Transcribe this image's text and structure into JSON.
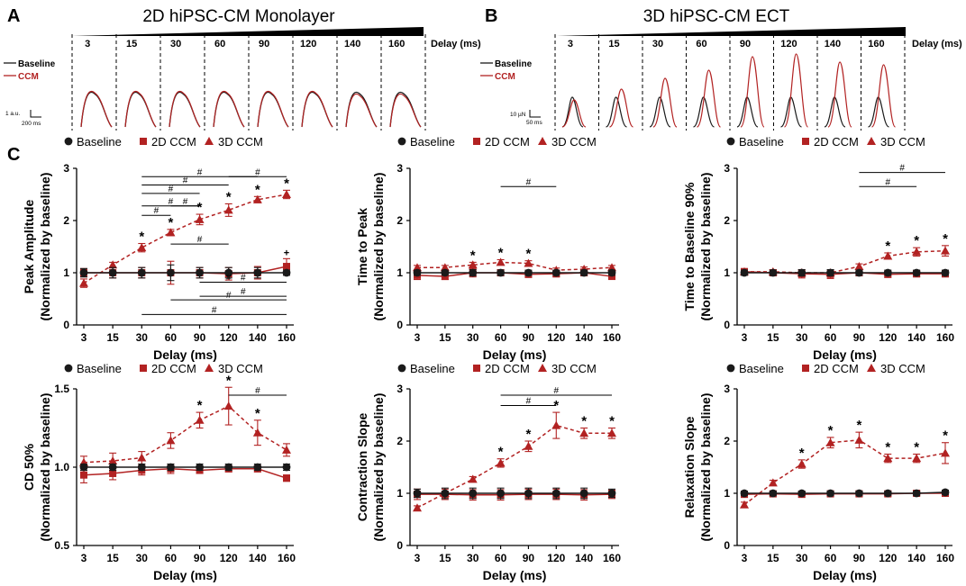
{
  "panels": {
    "a_letter": "A",
    "b_letter": "B",
    "c_letter": "C",
    "a_title": "2D hiPSC-CM Monolayer",
    "b_title": "3D hiPSC-CM ECT",
    "delay_label": "Delay (ms)",
    "delays": [
      "3",
      "15",
      "30",
      "60",
      "90",
      "120",
      "140",
      "160"
    ],
    "legend_baseline": "Baseline",
    "legend_ccm": "CCM",
    "a_scale_y": "1 a.u.",
    "a_scale_x": "200 ms",
    "b_scale_y": "10 µN",
    "b_scale_x": "50 ms"
  },
  "legend": {
    "baseline": "Baseline",
    "ccm2d": "2D CCM",
    "ccm3d": "3D CCM"
  },
  "colors": {
    "baseline": "#1a1a1a",
    "ccm": "#b22222",
    "axis": "#000000"
  },
  "chart_data": [
    {
      "type": "line",
      "ylabel": "Peak Amplitude\n(Normalized by baseline)",
      "xlabel": "Delay (ms)",
      "categories": [
        "3",
        "15",
        "30",
        "60",
        "90",
        "120",
        "140",
        "160"
      ],
      "ylim": [
        0,
        3
      ],
      "yticks": [
        "0",
        "1",
        "2",
        "3"
      ],
      "series": [
        {
          "name": "Baseline",
          "values": [
            1.0,
            1.0,
            1.0,
            1.0,
            1.0,
            1.0,
            1.0,
            1.0
          ],
          "err": [
            0.08,
            0.1,
            0.1,
            0.15,
            0.1,
            0.1,
            0.1,
            0.05
          ]
        },
        {
          "name": "2D CCM",
          "values": [
            1.0,
            1.0,
            1.0,
            1.0,
            1.0,
            0.98,
            1.0,
            1.12
          ],
          "err": [
            0.08,
            0.1,
            0.1,
            0.22,
            0.1,
            0.12,
            0.12,
            0.15
          ]
        },
        {
          "name": "3D CCM",
          "values": [
            0.8,
            1.15,
            1.48,
            1.77,
            2.02,
            2.2,
            2.4,
            2.5
          ],
          "err": [
            0.08,
            0.05,
            0.08,
            0.06,
            0.1,
            0.12,
            0.06,
            0.08
          ]
        }
      ],
      "stars": [
        {
          "i": 2,
          "text": "*"
        },
        {
          "i": 3,
          "text": "*"
        },
        {
          "i": 4,
          "text": "*"
        },
        {
          "i": 5,
          "text": "*"
        },
        {
          "i": 6,
          "text": "*"
        },
        {
          "i": 7,
          "text": "*"
        }
      ],
      "marks": [
        {
          "i": 7,
          "text": "+"
        }
      ],
      "brackets": [
        {
          "from": 2,
          "to": 3,
          "y": 2.1,
          "label": "#"
        },
        {
          "from": 2,
          "to": 4,
          "y": 2.28,
          "label": "#"
        },
        {
          "from": 3,
          "to": 4,
          "y": 2.28,
          "label": "#"
        },
        {
          "from": 2,
          "to": 4,
          "y": 2.52,
          "label": "#"
        },
        {
          "from": 2,
          "to": 5,
          "y": 2.68,
          "label": "#"
        },
        {
          "from": 2,
          "to": 6,
          "y": 2.84,
          "label": "#"
        },
        {
          "from": 5,
          "to": 7,
          "y": 2.84,
          "label": "#"
        },
        {
          "from": 3,
          "to": 5,
          "y": 1.55,
          "label": "#"
        },
        {
          "from": 4,
          "to": 7,
          "y": 0.82,
          "label": "#"
        },
        {
          "from": 4,
          "to": 6,
          "y": 0.82,
          "label": "#"
        },
        {
          "from": 4,
          "to": 7,
          "y": 0.55,
          "label": "#"
        },
        {
          "from": 3,
          "to": 7,
          "y": 0.48,
          "label": "#"
        },
        {
          "from": 2,
          "to": 7,
          "y": 0.2,
          "label": "#"
        }
      ]
    },
    {
      "type": "line",
      "ylabel": "Time to Peak\n(Normalized by baseline)",
      "xlabel": "Delay (ms)",
      "categories": [
        "3",
        "15",
        "30",
        "60",
        "90",
        "120",
        "140",
        "160"
      ],
      "ylim": [
        0,
        3
      ],
      "yticks": [
        "0",
        "1",
        "2",
        "3"
      ],
      "series": [
        {
          "name": "Baseline",
          "values": [
            1.0,
            1.0,
            1.0,
            1.0,
            1.0,
            1.0,
            1.0,
            1.0
          ],
          "err": [
            0.05,
            0.05,
            0.06,
            0.05,
            0.05,
            0.05,
            0.05,
            0.05
          ]
        },
        {
          "name": "2D CCM",
          "values": [
            0.95,
            0.93,
            1.0,
            1.0,
            0.97,
            0.98,
            1.0,
            0.93
          ],
          "err": [
            0.08,
            0.06,
            0.08,
            0.06,
            0.06,
            0.06,
            0.06,
            0.05
          ]
        },
        {
          "name": "3D CCM",
          "values": [
            1.1,
            1.1,
            1.15,
            1.2,
            1.18,
            1.05,
            1.07,
            1.1
          ],
          "err": [
            0.04,
            0.04,
            0.05,
            0.05,
            0.05,
            0.04,
            0.04,
            0.04
          ]
        }
      ],
      "stars": [
        {
          "i": 2,
          "text": "*"
        },
        {
          "i": 3,
          "text": "*"
        },
        {
          "i": 4,
          "text": "*"
        }
      ],
      "marks": [],
      "brackets": [
        {
          "from": 3,
          "to": 5,
          "y": 2.65,
          "label": "#"
        }
      ]
    },
    {
      "type": "line",
      "ylabel": "Time to Baseline 90%\n(Normalized by baseline)",
      "xlabel": "Delay (ms)",
      "categories": [
        "3",
        "15",
        "30",
        "60",
        "90",
        "120",
        "140",
        "160"
      ],
      "ylim": [
        0,
        3
      ],
      "yticks": [
        "0",
        "1",
        "2",
        "3"
      ],
      "series": [
        {
          "name": "Baseline",
          "values": [
            1.0,
            1.0,
            1.0,
            1.0,
            1.0,
            1.0,
            1.0,
            1.0
          ],
          "err": [
            0.05,
            0.05,
            0.06,
            0.06,
            0.05,
            0.05,
            0.05,
            0.05
          ]
        },
        {
          "name": "2D CCM",
          "values": [
            1.02,
            1.0,
            0.98,
            0.97,
            1.0,
            0.97,
            0.98,
            0.98
          ],
          "err": [
            0.06,
            0.06,
            0.08,
            0.08,
            0.06,
            0.06,
            0.06,
            0.06
          ]
        },
        {
          "name": "3D CCM",
          "values": [
            1.02,
            1.02,
            1.0,
            1.0,
            1.12,
            1.32,
            1.4,
            1.42
          ],
          "err": [
            0.04,
            0.04,
            0.05,
            0.05,
            0.05,
            0.06,
            0.08,
            0.1
          ]
        }
      ],
      "stars": [
        {
          "i": 5,
          "text": "*"
        },
        {
          "i": 6,
          "text": "*"
        },
        {
          "i": 7,
          "text": "*"
        }
      ],
      "marks": [],
      "brackets": [
        {
          "from": 4,
          "to": 6,
          "y": 2.65,
          "label": "#"
        },
        {
          "from": 4,
          "to": 7,
          "y": 2.92,
          "label": "#"
        }
      ]
    },
    {
      "type": "line",
      "ylabel": "CD 50%\n(Normalized by baseline)",
      "xlabel": "Delay (ms)",
      "categories": [
        "3",
        "15",
        "30",
        "60",
        "90",
        "120",
        "140",
        "160"
      ],
      "ylim": [
        0.5,
        1.5
      ],
      "yticks": [
        "0.5",
        "1.0",
        "1.5"
      ],
      "series": [
        {
          "name": "Baseline",
          "values": [
            1.0,
            1.0,
            1.0,
            1.0,
            1.0,
            1.0,
            1.0,
            1.0
          ],
          "err": [
            0.02,
            0.02,
            0.02,
            0.02,
            0.02,
            0.02,
            0.02,
            0.02
          ]
        },
        {
          "name": "2D CCM",
          "values": [
            0.95,
            0.96,
            0.98,
            0.99,
            0.98,
            0.99,
            0.99,
            0.93
          ],
          "err": [
            0.05,
            0.04,
            0.03,
            0.03,
            0.02,
            0.02,
            0.02,
            0.02
          ]
        },
        {
          "name": "3D CCM",
          "values": [
            1.03,
            1.04,
            1.06,
            1.17,
            1.3,
            1.39,
            1.22,
            1.11
          ],
          "err": [
            0.04,
            0.05,
            0.04,
            0.05,
            0.05,
            0.12,
            0.08,
            0.04
          ]
        }
      ],
      "stars": [
        {
          "i": 4,
          "text": "*"
        },
        {
          "i": 5,
          "text": "*"
        },
        {
          "i": 6,
          "text": "*"
        }
      ],
      "marks": [],
      "brackets": [
        {
          "from": 5,
          "to": 7,
          "y": 1.46,
          "label": "#"
        }
      ]
    },
    {
      "type": "line",
      "ylabel": "Contraction Slope\n(Normalized by baseline)",
      "xlabel": "Delay (ms)",
      "categories": [
        "3",
        "15",
        "30",
        "60",
        "90",
        "120",
        "140",
        "160"
      ],
      "ylim": [
        0,
        3
      ],
      "yticks": [
        "0",
        "1",
        "2",
        "3"
      ],
      "series": [
        {
          "name": "Baseline",
          "values": [
            1.0,
            1.0,
            1.0,
            1.0,
            1.0,
            1.0,
            1.0,
            1.0
          ],
          "err": [
            0.08,
            0.1,
            0.1,
            0.1,
            0.1,
            0.1,
            0.1,
            0.08
          ]
        },
        {
          "name": "2D CCM",
          "values": [
            0.98,
            0.98,
            0.97,
            0.97,
            0.98,
            0.98,
            0.97,
            0.98
          ],
          "err": [
            0.1,
            0.1,
            0.1,
            0.1,
            0.1,
            0.1,
            0.1,
            0.08
          ]
        },
        {
          "name": "3D CCM",
          "values": [
            0.72,
            1.0,
            1.27,
            1.58,
            1.9,
            2.3,
            2.15,
            2.15
          ],
          "err": [
            0.04,
            0.04,
            0.05,
            0.08,
            0.1,
            0.25,
            0.1,
            0.1
          ]
        }
      ],
      "stars": [
        {
          "i": 3,
          "text": "*"
        },
        {
          "i": 4,
          "text": "*"
        },
        {
          "i": 5,
          "text": "*"
        },
        {
          "i": 6,
          "text": "*"
        },
        {
          "i": 7,
          "text": "*"
        }
      ],
      "marks": [],
      "brackets": [
        {
          "from": 3,
          "to": 5,
          "y": 2.68,
          "label": "#"
        },
        {
          "from": 3,
          "to": 7,
          "y": 2.88,
          "label": "#"
        }
      ]
    },
    {
      "type": "line",
      "ylabel": "Relaxation Slope\n(Normalized by baseline)",
      "xlabel": "Delay (ms)",
      "categories": [
        "3",
        "15",
        "30",
        "60",
        "90",
        "120",
        "140",
        "160"
      ],
      "ylim": [
        0,
        3
      ],
      "yticks": [
        "0",
        "1",
        "2",
        "3"
      ],
      "series": [
        {
          "name": "Baseline",
          "values": [
            1.0,
            1.0,
            1.0,
            1.0,
            1.0,
            1.0,
            1.0,
            1.02
          ],
          "err": [
            0.04,
            0.04,
            0.04,
            0.04,
            0.04,
            0.04,
            0.04,
            0.04
          ]
        },
        {
          "name": "2D CCM",
          "values": [
            0.98,
            0.99,
            0.98,
            0.99,
            0.99,
            0.99,
            1.0,
            1.0
          ],
          "err": [
            0.05,
            0.05,
            0.05,
            0.05,
            0.05,
            0.05,
            0.05,
            0.05
          ]
        },
        {
          "name": "3D CCM",
          "values": [
            0.78,
            1.2,
            1.56,
            1.97,
            2.02,
            1.67,
            1.67,
            1.77
          ],
          "err": [
            0.05,
            0.05,
            0.08,
            0.1,
            0.15,
            0.08,
            0.08,
            0.2
          ]
        }
      ],
      "stars": [
        {
          "i": 2,
          "text": "*"
        },
        {
          "i": 3,
          "text": "*"
        },
        {
          "i": 4,
          "text": "*"
        },
        {
          "i": 5,
          "text": "*"
        },
        {
          "i": 6,
          "text": "*"
        },
        {
          "i": 7,
          "text": "*"
        }
      ],
      "marks": [],
      "brackets": []
    }
  ]
}
